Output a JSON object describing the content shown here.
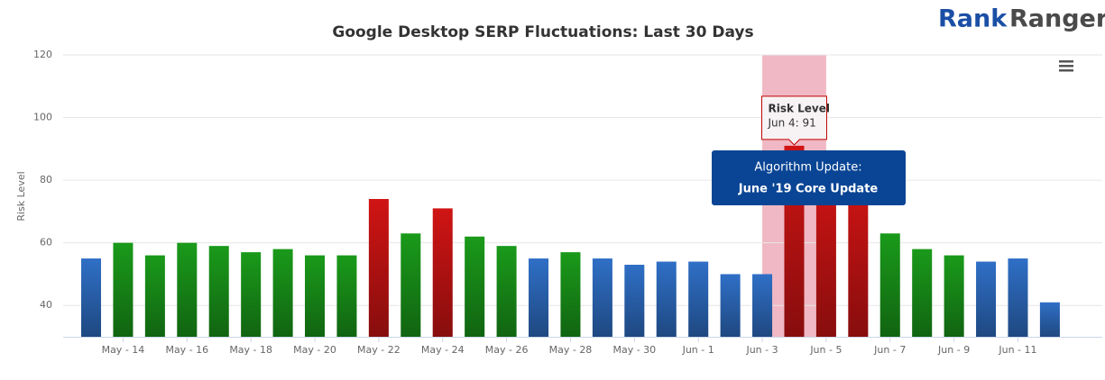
{
  "chart_data": {
    "type": "bar",
    "title": "Google Desktop SERP Fluctuations: Last 30 Days",
    "logo": [
      "Rank",
      "Ranger"
    ],
    "y_label": "Risk Level",
    "categories": [
      null,
      "May - 14",
      null,
      "May - 16",
      null,
      "May - 18",
      null,
      "May - 20",
      null,
      "May - 22",
      null,
      "May - 24",
      null,
      "May - 26",
      null,
      "May - 28",
      null,
      "May - 30",
      null,
      "Jun - 1",
      null,
      "Jun - 3",
      null,
      "Jun - 5",
      null,
      "Jun - 7",
      null,
      "Jun - 9",
      null,
      "Jun - 11",
      null
    ],
    "values": [
      55,
      60,
      56,
      60,
      59,
      57,
      58,
      56,
      56,
      74,
      63,
      71,
      62,
      59,
      55,
      57,
      55,
      53,
      54,
      54,
      50,
      50,
      91,
      82,
      80,
      63,
      58,
      56,
      54,
      55,
      41
    ],
    "colors": [
      "#2f6fc6",
      "#1a9a1a",
      "#1a9a1a",
      "#1a9a1a",
      "#1a9a1a",
      "#1a9a1a",
      "#1a9a1a",
      "#1a9a1a",
      "#1a9a1a",
      "#d01414",
      "#1a9a1a",
      "#d01414",
      "#1a9a1a",
      "#1a9a1a",
      "#2f6fc6",
      "#1a9a1a",
      "#2f6fc6",
      "#2f6fc6",
      "#2f6fc6",
      "#2f6fc6",
      "#2f6fc6",
      "#2f6fc6",
      "#d01414",
      "#d01414",
      "#d01414",
      "#1a9a1a",
      "#1a9a1a",
      "#1a9a1a",
      "#2f6fc6",
      "#2f6fc6",
      "#2f6fc6"
    ],
    "ylim": [
      30,
      120
    ],
    "yticks": [
      40,
      60,
      80,
      100,
      120
    ],
    "grid": true,
    "plot_band": {
      "from": 21,
      "to": 23,
      "color": "#f0b8c4"
    },
    "tooltip": {
      "title": "Risk Level",
      "text": "Jun 4: 91",
      "point": 22
    },
    "annotation": {
      "title": "Algorithm Update:",
      "text": "June '19 Core Update",
      "color": "#0a4595"
    }
  }
}
